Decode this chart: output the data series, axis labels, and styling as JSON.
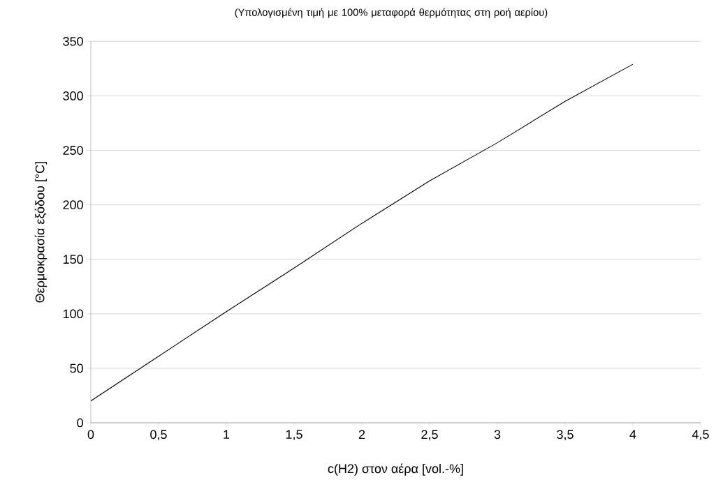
{
  "chart_data": {
    "type": "line",
    "xlabel": "c(H2) στον αέρα [vol.-%]",
    "ylabel": "Θερμοκρασία εξόδου [°C]",
    "annotations": [
      "(Υπολογισμένη τιμή με 100% μεταφορά θερμότητας στη ροή αερίου)"
    ],
    "x": [
      0,
      0.5,
      1,
      1.5,
      2,
      2.5,
      3,
      3.5,
      4
    ],
    "series": [
      {
        "color": "#000000",
        "values": [
          20,
          61,
          102,
          142,
          183,
          222,
          257,
          295,
          329
        ]
      }
    ],
    "xlim": [
      0,
      4.5
    ],
    "xticks": [
      0,
      {
        "value": 0.5,
        "label": "0,5"
      },
      1,
      {
        "value": 1.5,
        "label": "1,5"
      },
      2,
      {
        "value": 2.5,
        "label": "2,5"
      },
      3,
      {
        "value": 3.5,
        "label": "3,5"
      },
      4,
      {
        "value": 4.5,
        "label": "4,5"
      }
    ],
    "ylim": [
      0,
      350
    ],
    "yticks": [
      0,
      50,
      100,
      150,
      200,
      250,
      300,
      350
    ],
    "grid": "y",
    "marker": "none",
    "line_style": "solid"
  }
}
